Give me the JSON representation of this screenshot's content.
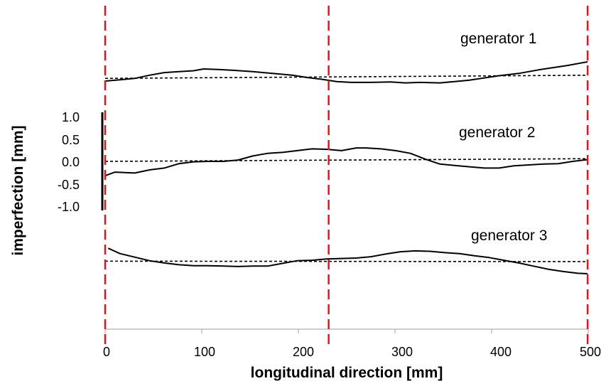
{
  "chart_data": {
    "type": "line",
    "xlabel": "longitudinal direction [mm]",
    "ylabel": "imperfection [mm]",
    "xlim": [
      0,
      500
    ],
    "x_ticks": [
      "0",
      "100",
      "200",
      "300",
      "400",
      "500"
    ],
    "y_ticks": [
      "1.0",
      "0.5",
      "0.0",
      "-0.5",
      "-1.0"
    ],
    "y_scale_range": [
      -1.0,
      1.0
    ],
    "reference_lines_x": [
      0,
      227,
      490
    ],
    "reference_line_color": "#e0141b",
    "series": [
      {
        "name": "generator 1",
        "x": [
          0,
          15,
          30,
          45,
          60,
          75,
          90,
          100,
          115,
          130,
          150,
          170,
          190,
          205,
          220,
          235,
          250,
          270,
          290,
          305,
          320,
          340,
          355,
          370,
          385,
          400,
          420,
          440,
          455,
          470,
          485,
          490
        ],
        "y": [
          -0.08,
          -0.05,
          -0.02,
          0.05,
          0.11,
          0.13,
          0.15,
          0.19,
          0.18,
          0.16,
          0.13,
          0.09,
          0.05,
          0.0,
          -0.04,
          -0.09,
          -0.11,
          -0.11,
          -0.1,
          -0.12,
          -0.11,
          -0.12,
          -0.09,
          -0.06,
          -0.01,
          0.04,
          0.09,
          0.17,
          0.22,
          0.27,
          0.33,
          0.35
        ],
        "trend": [
          -0.02,
          0.05
        ]
      },
      {
        "name": "generator 2",
        "x": [
          0,
          10,
          30,
          45,
          60,
          75,
          90,
          105,
          120,
          135,
          150,
          165,
          180,
          195,
          210,
          225,
          240,
          255,
          265,
          280,
          295,
          310,
          325,
          340,
          355,
          370,
          385,
          400,
          415,
          430,
          445,
          460,
          475,
          490
        ],
        "y": [
          -0.32,
          -0.24,
          -0.26,
          -0.19,
          -0.15,
          -0.05,
          -0.01,
          0.0,
          0.0,
          0.03,
          0.12,
          0.18,
          0.2,
          0.24,
          0.28,
          0.27,
          0.24,
          0.3,
          0.3,
          0.28,
          0.24,
          0.18,
          0.05,
          -0.06,
          -0.09,
          -0.12,
          -0.15,
          -0.15,
          -0.1,
          -0.08,
          -0.06,
          -0.05,
          0.0,
          0.04
        ],
        "trend": [
          0.0,
          0.06
        ]
      },
      {
        "name": "generator 3",
        "x": [
          3,
          15,
          30,
          45,
          60,
          75,
          90,
          105,
          120,
          135,
          150,
          165,
          180,
          195,
          210,
          225,
          240,
          255,
          270,
          285,
          300,
          315,
          330,
          345,
          360,
          375,
          390,
          405,
          420,
          435,
          450,
          465,
          480,
          490
        ],
        "y": [
          0.3,
          0.18,
          0.1,
          0.02,
          -0.03,
          -0.07,
          -0.09,
          -0.09,
          -0.1,
          -0.11,
          -0.1,
          -0.1,
          -0.04,
          0.02,
          0.03,
          0.06,
          0.07,
          0.08,
          0.11,
          0.17,
          0.22,
          0.24,
          0.23,
          0.2,
          0.18,
          0.13,
          0.09,
          0.03,
          -0.03,
          -0.1,
          -0.17,
          -0.22,
          -0.26,
          -0.27
        ],
        "trend": [
          0.01,
          0.0
        ]
      }
    ]
  }
}
